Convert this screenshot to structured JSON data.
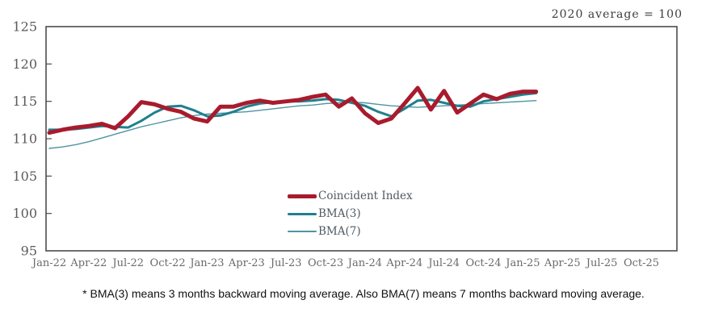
{
  "figure": {
    "unit_note": "2020 average = 100",
    "footnote": "* BMA(3) means 3 months backward moving average. Also BMA(7) means 7 months backward moving average."
  },
  "colors": {
    "coincident": "#a81b2d",
    "bma3": "#20808d",
    "bma7": "#4f94a3",
    "axis": "#4d4d4d",
    "y_tick_label": "#5a5a5a",
    "x_tick_label": "#6a6a6a",
    "background": "#ffffff"
  },
  "chart_data": {
    "type": "line",
    "title": "",
    "unit_note": "2020 average = 100",
    "grid": false,
    "legend_position": "inside-bottom-center",
    "x_axis": {
      "tick_labels": [
        "Jan-22",
        "Apr-22",
        "Jul-22",
        "Oct-22",
        "Jan-23",
        "Apr-23",
        "Jul-23",
        "Oct-23",
        "Jan-24",
        "Apr-24",
        "Jul-24",
        "Oct-24",
        "Jan-25",
        "Apr-25",
        "Jul-25",
        "Oct-25"
      ],
      "months_per_tick": 3,
      "total_axis_months": 46
    },
    "y_axis": {
      "min": 95,
      "max": 125,
      "tick_step": 5,
      "ticks": [
        95,
        100,
        105,
        110,
        115,
        120,
        125
      ]
    },
    "months": [
      "Jan-22",
      "Feb-22",
      "Mar-22",
      "Apr-22",
      "May-22",
      "Jun-22",
      "Jul-22",
      "Aug-22",
      "Sep-22",
      "Oct-22",
      "Nov-22",
      "Dec-22",
      "Jan-23",
      "Feb-23",
      "Mar-23",
      "Apr-23",
      "May-23",
      "Jun-23",
      "Jul-23",
      "Aug-23",
      "Sep-23",
      "Oct-23",
      "Nov-23",
      "Dec-23",
      "Jan-24",
      "Feb-24",
      "Mar-24",
      "Apr-24",
      "May-24",
      "Jun-24",
      "Jul-24",
      "Aug-24",
      "Sep-24",
      "Oct-24",
      "Nov-24",
      "Dec-24",
      "Jan-25",
      "Feb-25"
    ],
    "series": [
      {
        "name": "Coincident Index",
        "color": "#a81b2d",
        "stroke_width": 5,
        "values": [
          110.8,
          111.2,
          111.5,
          111.7,
          112.0,
          111.4,
          113.0,
          114.9,
          114.6,
          114.0,
          113.6,
          112.7,
          112.3,
          114.3,
          114.3,
          114.8,
          115.1,
          114.8,
          115.0,
          115.2,
          115.6,
          115.9,
          114.3,
          115.4,
          113.4,
          112.1,
          112.7,
          114.7,
          116.8,
          113.9,
          116.4,
          113.5,
          114.7,
          115.9,
          115.3,
          116.0,
          116.3,
          116.3
        ]
      },
      {
        "name": "BMA(3)",
        "color": "#20808d",
        "stroke_width": 3,
        "values": [
          111.2,
          111.2,
          111.3,
          111.5,
          111.7,
          111.6,
          111.5,
          112.4,
          113.5,
          114.3,
          114.4,
          113.8,
          113.0,
          113.1,
          113.6,
          114.3,
          114.7,
          114.9,
          115.0,
          115.0,
          115.1,
          115.3,
          115.2,
          114.8,
          114.4,
          113.6,
          113.0,
          114.0,
          115.1,
          115.2,
          114.8,
          114.4,
          114.3,
          115.0,
          115.3,
          115.6,
          115.9,
          116.1
        ]
      },
      {
        "name": "BMA(7)",
        "color": "#4f94a3",
        "stroke_width": 1.4,
        "values": [
          108.7,
          108.9,
          109.2,
          109.6,
          110.1,
          110.6,
          111.1,
          111.6,
          112.0,
          112.4,
          112.8,
          113.1,
          113.3,
          113.4,
          113.5,
          113.6,
          113.8,
          114.0,
          114.2,
          114.4,
          114.5,
          114.7,
          114.8,
          114.9,
          114.8,
          114.6,
          114.4,
          114.3,
          114.2,
          114.3,
          114.4,
          114.5,
          114.6,
          114.7,
          114.8,
          114.9,
          115.0,
          115.1
        ]
      }
    ]
  }
}
